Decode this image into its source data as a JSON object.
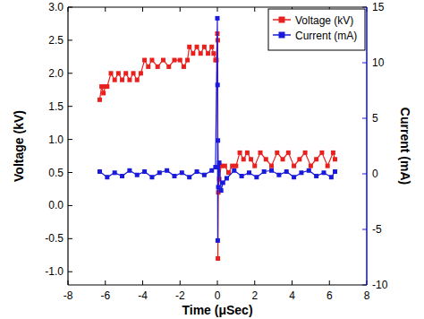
{
  "chart_data": {
    "type": "scatter",
    "x_label": "Time (μSec)",
    "y_label": "Voltage (kV)",
    "y2_label": "Current (mA)",
    "xlim": [
      -8,
      8
    ],
    "xticks": [
      -8,
      -6,
      -4,
      -2,
      0,
      2,
      4,
      6,
      8
    ],
    "ylim": [
      -1.2,
      3.0
    ],
    "yticks": [
      {
        "value": -1,
        "label": "-1.0"
      },
      -0.5,
      {
        "value": 0,
        "label": "0.0"
      },
      0.5,
      {
        "value": 1,
        "label": "1.0"
      },
      1.5,
      {
        "value": 2,
        "label": "2.0"
      },
      2.5,
      {
        "value": 3,
        "label": "3.0"
      }
    ],
    "y2lim": [
      -10,
      15
    ],
    "y2ticks": [
      -10,
      -5,
      0,
      5,
      10,
      15
    ],
    "legend": "top-right",
    "series": [
      {
        "name": "Voltage (kV)",
        "color": "#e8201e",
        "marker": "square",
        "line_style": "solid",
        "x": [
          -6.3,
          -6.2,
          -6.1,
          -6.0,
          -5.9,
          -5.7,
          -5.5,
          -5.3,
          -5.1,
          -4.9,
          -4.7,
          -4.5,
          -4.3,
          -4.1,
          -3.9,
          -3.7,
          -3.5,
          -3.2,
          -2.9,
          -2.6,
          -2.3,
          -2.0,
          -1.8,
          -1.6,
          -1.5,
          -1.3,
          -1.1,
          -0.9,
          -0.7,
          -0.5,
          -0.3,
          -0.2,
          -0.1,
          -0.05,
          0,
          0.02,
          0.03,
          0.05,
          0.1,
          0.2,
          0.4,
          0.6,
          0.8,
          1.0,
          1.2,
          1.4,
          1.6,
          1.8,
          2.0,
          2.3,
          2.6,
          2.9,
          3.2,
          3.5,
          3.8,
          4.1,
          4.4,
          4.7,
          5.0,
          5.3,
          5.6,
          5.9,
          6.2,
          6.3
        ],
        "values": [
          1.6,
          1.8,
          1.7,
          1.8,
          1.8,
          2.0,
          1.9,
          2.0,
          1.9,
          2.0,
          1.9,
          2.0,
          1.9,
          2.0,
          2.2,
          2.1,
          2.2,
          2.1,
          2.2,
          2.1,
          2.2,
          2.2,
          2.1,
          2.2,
          2.4,
          2.3,
          2.4,
          2.3,
          2.4,
          2.3,
          2.4,
          2.3,
          2.2,
          2.2,
          2.6,
          2.5,
          -0.8,
          0.2,
          0.4,
          0.6,
          0.6,
          0.5,
          0.6,
          0.6,
          0.8,
          0.7,
          0.8,
          0.7,
          0.6,
          0.8,
          0.7,
          0.6,
          0.8,
          0.7,
          0.8,
          0.6,
          0.7,
          0.8,
          0.6,
          0.7,
          0.8,
          0.6,
          0.8,
          0.7
        ]
      },
      {
        "name": "Current (mA)",
        "color": "#1a1adb",
        "marker": "square",
        "line_style": "solid",
        "axis": "y2",
        "x": [
          -6.3,
          -5.9,
          -5.5,
          -5.1,
          -4.7,
          -4.3,
          -3.9,
          -3.5,
          -3.1,
          -2.7,
          -2.3,
          -1.9,
          -1.5,
          -1.1,
          -0.7,
          -0.3,
          -0.1,
          0,
          0.01,
          0.02,
          0.03,
          0.05,
          0.1,
          0.2,
          0.3,
          0.5,
          0.9,
          1.3,
          1.7,
          2.1,
          2.5,
          2.9,
          3.3,
          3.7,
          4.1,
          4.5,
          4.9,
          5.3,
          5.7,
          6.1,
          6.3
        ],
        "values": [
          0.2,
          -0.3,
          0.1,
          -0.2,
          0.3,
          -0.1,
          0.2,
          -0.3,
          0.1,
          0.3,
          -0.2,
          0.1,
          -0.3,
          0.2,
          -0.1,
          0.3,
          0.6,
          14,
          8,
          -6,
          3,
          -1.2,
          1,
          -1.5,
          -0.8,
          -0.4,
          0.3,
          -0.2,
          0.1,
          -0.3,
          0.2,
          0.3,
          -0.1,
          0.2,
          -0.3,
          0.1,
          0.3,
          -0.2,
          0.1,
          -0.3,
          0.2
        ]
      }
    ]
  }
}
